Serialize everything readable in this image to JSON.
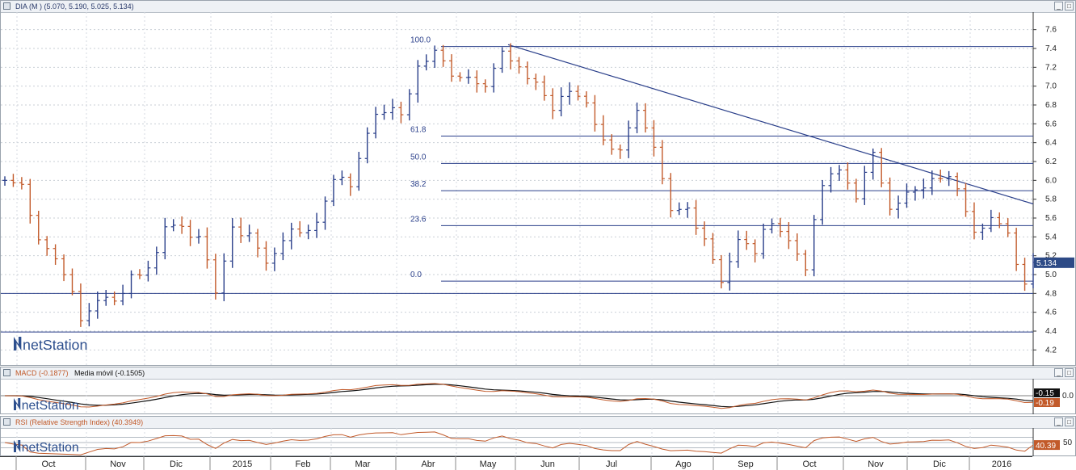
{
  "price_panel": {
    "title": "DIA (M ) (5.070, 5.190, 5.025, 5.134)",
    "last_price": "5.134",
    "y_ticks": [
      "7.6",
      "7.4",
      "7.2",
      "7.0",
      "6.8",
      "6.6",
      "6.4",
      "6.2",
      "6.0",
      "5.8",
      "5.6",
      "5.4",
      "5.2",
      "5.0",
      "4.8",
      "4.6",
      "4.4",
      "4.2"
    ],
    "fib_labels": [
      "100.0",
      "61.8",
      "50.0",
      "38.2",
      "23.6",
      "0.0"
    ],
    "fib_values": [
      7.42,
      6.47,
      6.18,
      5.89,
      5.52,
      4.93
    ],
    "hlines": [
      4.8,
      4.39
    ],
    "trendline": {
      "start": {
        "date": "May 2015",
        "value": 7.44
      },
      "end": {
        "date": "Jan 2016",
        "value": 5.75
      }
    },
    "watermark": "netStation"
  },
  "macd_panel": {
    "title_a": "MACD (-0.1877)",
    "title_b": "Media móvil (-0.1505)",
    "badge_top": "-0.15",
    "badge_bottom": "-0.19",
    "zero_tick": "0.0",
    "watermark": "netStation"
  },
  "rsi_panel": {
    "title": "RSI (Relative Strength Index) (40.3949)",
    "badge": "40.39",
    "tick": "50",
    "watermark": "netStation"
  },
  "x_axis": {
    "labels": [
      "Oct",
      "Nov",
      "Dic",
      "2015",
      "Feb",
      "Mar",
      "Abr",
      "May",
      "Jun",
      "Jul",
      "Ago",
      "Sep",
      "Oct",
      "Nov",
      "Dic",
      "2016"
    ]
  },
  "window_buttons": {
    "minimize": "_",
    "maximize": "□"
  },
  "chart_data": {
    "type": "bar",
    "subtype": "ohlc",
    "x_labels": [
      "Oct",
      "Nov",
      "Dic",
      "2015",
      "Feb",
      "Mar",
      "Abr",
      "May",
      "Jun",
      "Jul",
      "Ago",
      "Sep",
      "Oct",
      "Nov",
      "Dic",
      "2016"
    ],
    "ylim": [
      4.1,
      7.7
    ],
    "anchors": [
      [
        0,
        6.0
      ],
      [
        2,
        5.95
      ],
      [
        4,
        5.4
      ],
      [
        7,
        5.05
      ],
      [
        9,
        4.5
      ],
      [
        11,
        4.75
      ],
      [
        13,
        4.7
      ],
      [
        15,
        5.0
      ],
      [
        17,
        5.05
      ],
      [
        19,
        5.5
      ],
      [
        21,
        5.55
      ],
      [
        23,
        5.35
      ],
      [
        25,
        4.85
      ],
      [
        27,
        5.45
      ],
      [
        29,
        5.45
      ],
      [
        31,
        5.1
      ],
      [
        33,
        5.4
      ],
      [
        35,
        5.45
      ],
      [
        37,
        5.55
      ],
      [
        39,
        6.05
      ],
      [
        41,
        5.95
      ],
      [
        43,
        6.55
      ],
      [
        45,
        6.75
      ],
      [
        47,
        6.7
      ],
      [
        49,
        7.2
      ],
      [
        51,
        7.35
      ],
      [
        53,
        7.15
      ],
      [
        55,
        7.1
      ],
      [
        57,
        7.05
      ],
      [
        59,
        7.35
      ],
      [
        61,
        7.15
      ],
      [
        63,
        7.05
      ],
      [
        65,
        6.75
      ],
      [
        67,
        6.95
      ],
      [
        69,
        6.85
      ],
      [
        71,
        6.4
      ],
      [
        73,
        6.35
      ],
      [
        75,
        6.7
      ],
      [
        77,
        6.3
      ],
      [
        79,
        5.65
      ],
      [
        81,
        5.7
      ],
      [
        83,
        5.4
      ],
      [
        85,
        4.95
      ],
      [
        87,
        5.35
      ],
      [
        89,
        5.25
      ],
      [
        91,
        5.6
      ],
      [
        93,
        5.35
      ],
      [
        95,
        5.1
      ],
      [
        97,
        5.95
      ],
      [
        99,
        6.1
      ],
      [
        101,
        5.85
      ],
      [
        103,
        6.25
      ],
      [
        105,
        5.75
      ],
      [
        107,
        5.85
      ],
      [
        109,
        5.9
      ],
      [
        111,
        6.05
      ],
      [
        113,
        5.95
      ],
      [
        115,
        5.5
      ],
      [
        117,
        5.6
      ],
      [
        119,
        5.4
      ],
      [
        121,
        4.9
      ],
      [
        122,
        5.13
      ]
    ],
    "macd_signal_last": -0.1505,
    "macd_last": -0.1877,
    "rsi_last": 40.3949
  },
  "colors": {
    "bar_up": "#2a3f8a",
    "bar_down": "#c25a2a",
    "fib_line": "#2a3f8a",
    "trendline": "#2a3f8a",
    "macd": "#c25a2a",
    "signal": "#111111",
    "badge_blue": "#2d4a86",
    "badge_orange": "#c25a2a",
    "logo": "#2d4f8e"
  }
}
